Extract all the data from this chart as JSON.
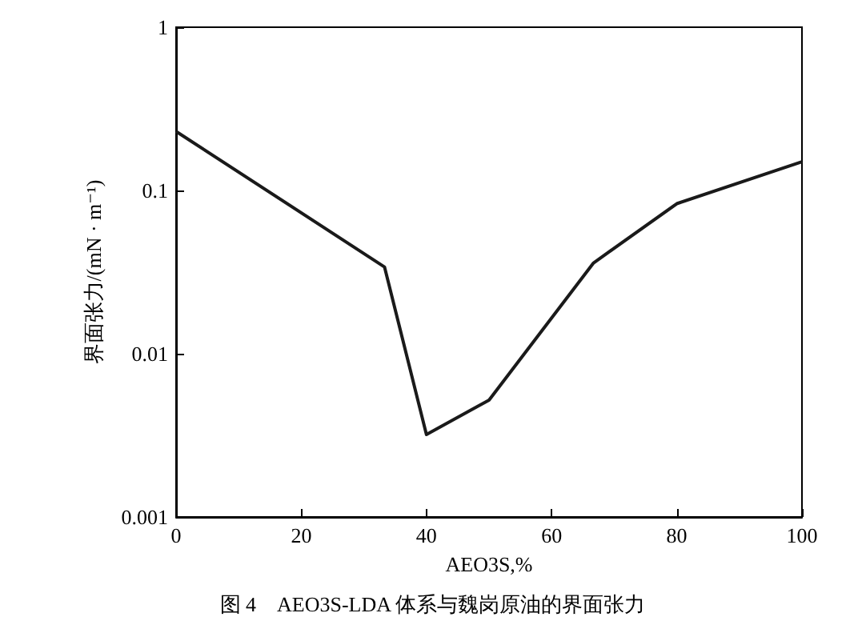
{
  "chart_data": {
    "type": "line",
    "xlabel": "AEO3S,%",
    "ylabel": "界面张力/(mN · m⁻¹)",
    "annotations": [
      "图 4　AEO3S-LDA 体系与魏岗原油的界面张力"
    ],
    "x": [
      0,
      33.3,
      40,
      50,
      66.7,
      80,
      100
    ],
    "series": [
      {
        "color": "#1a1a1a",
        "values": [
          0.23,
          0.034,
          0.0032,
          0.0052,
          0.036,
          0.083,
          0.15
        ]
      }
    ],
    "xlim": [
      0,
      100
    ],
    "xticks": [
      0,
      20,
      40,
      60,
      80,
      100
    ],
    "ylim": [
      0.001,
      1
    ],
    "yticks": [
      0.001,
      0.01,
      0.1,
      1
    ],
    "log": "y",
    "grid": false,
    "marker": "none",
    "line_style": "solid"
  }
}
